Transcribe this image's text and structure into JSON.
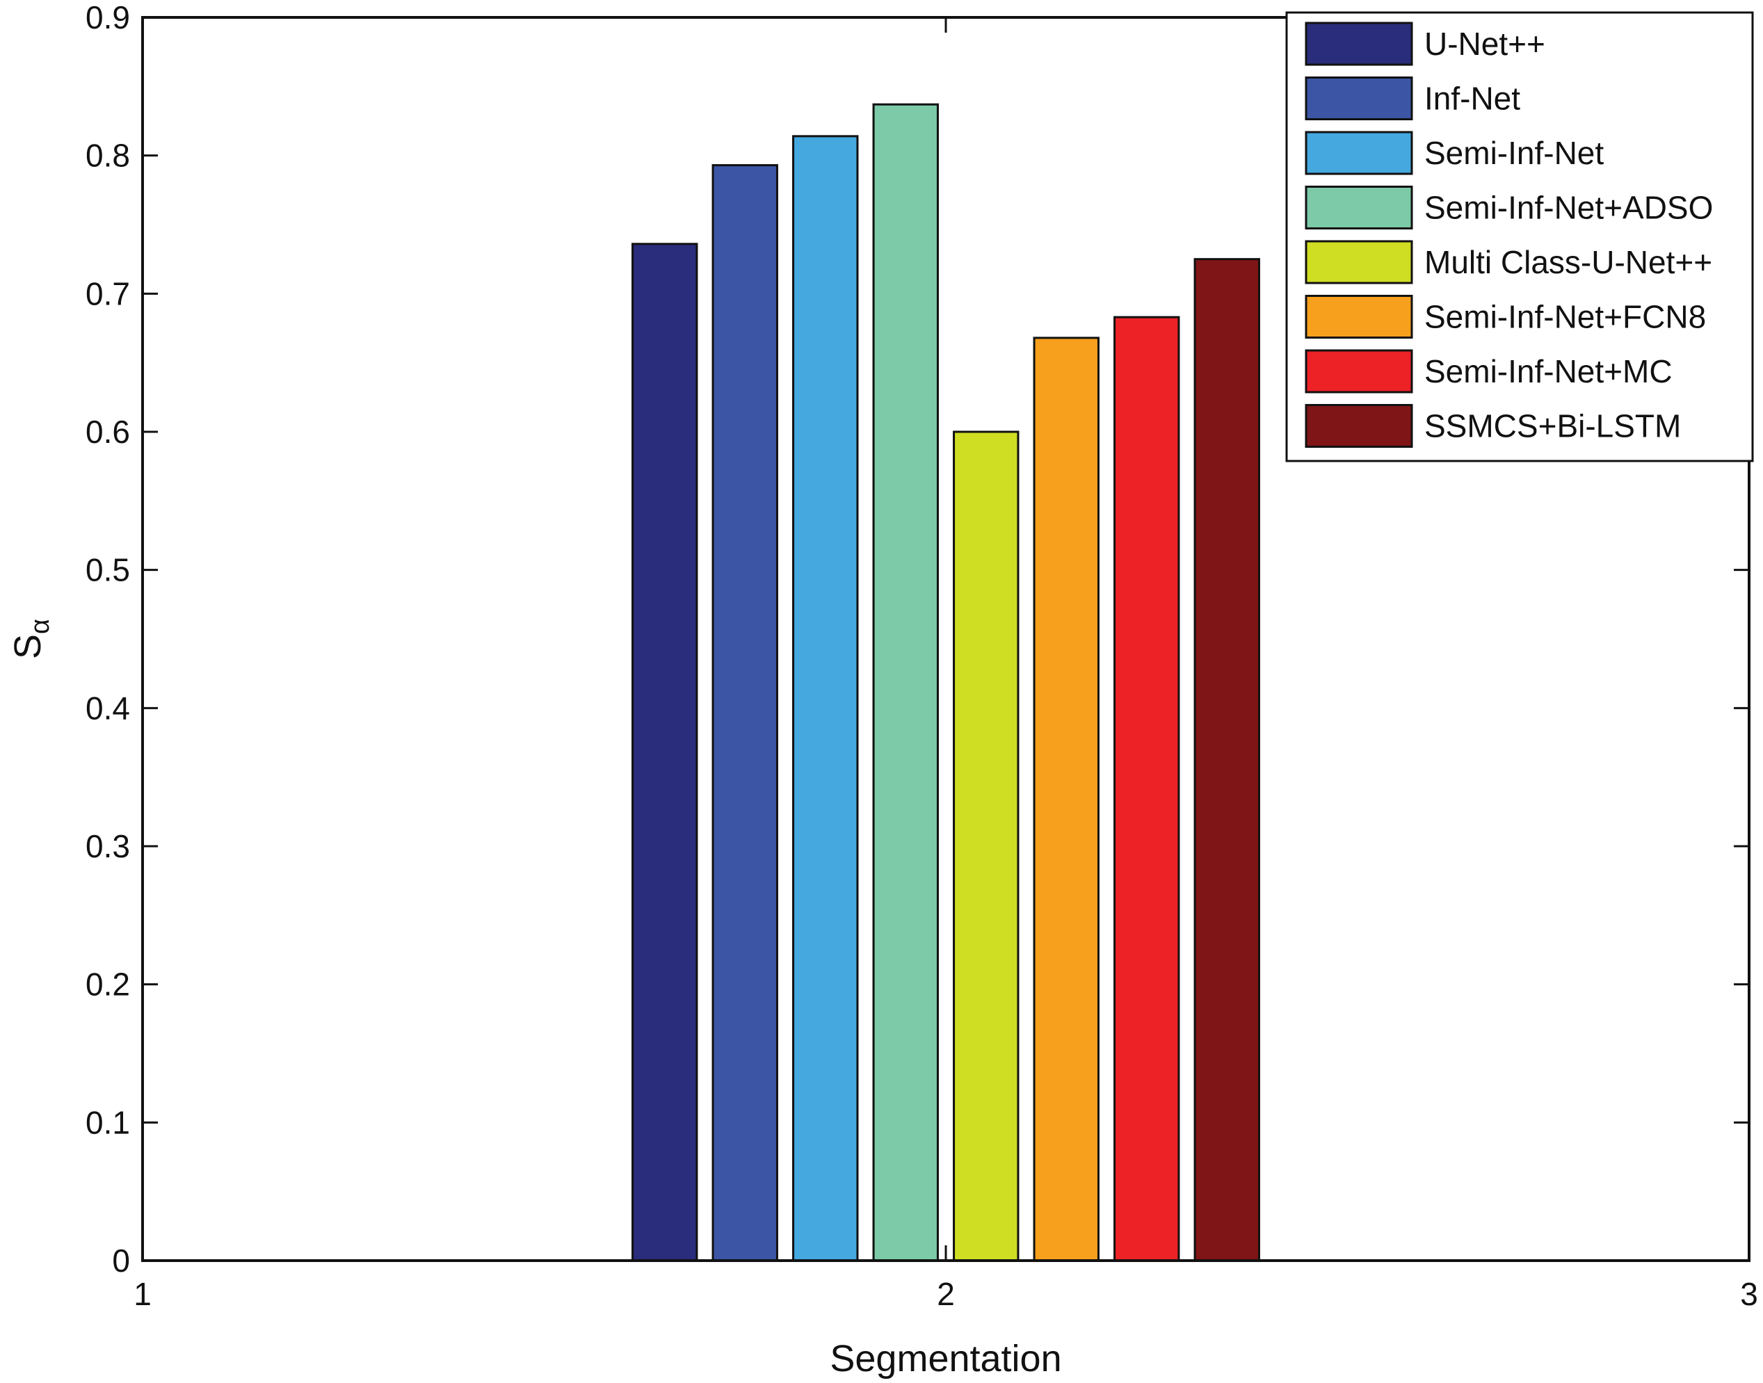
{
  "chart_data": {
    "type": "bar",
    "x": [
      2
    ],
    "xlim": [
      1,
      3
    ],
    "xticks": [
      "1",
      "2",
      "3"
    ],
    "ylim": [
      0,
      0.9
    ],
    "yticks": [
      "0",
      "0.1",
      "0.2",
      "0.3",
      "0.4",
      "0.5",
      "0.6",
      "0.7",
      "0.8",
      "0.9"
    ],
    "xlabel": "Segmentation",
    "ylabel": "S",
    "ylabel_subscript": "α",
    "grid": false,
    "legend_position": "top-right",
    "series": [
      {
        "name": "U-Net++",
        "values": [
          0.736
        ],
        "color": "#2a2d7c"
      },
      {
        "name": "Inf-Net",
        "values": [
          0.793
        ],
        "color": "#3c56a5"
      },
      {
        "name": "Semi-Inf-Net",
        "values": [
          0.814
        ],
        "color": "#45a8df"
      },
      {
        "name": "Semi-Inf-Net+ADSO",
        "values": [
          0.837
        ],
        "color": "#7ccaa8"
      },
      {
        "name": "Multi Class-U-Net++",
        "values": [
          0.6
        ],
        "color": "#cfdd23"
      },
      {
        "name": "Semi-Inf-Net+FCN8",
        "values": [
          0.668
        ],
        "color": "#f7a01e"
      },
      {
        "name": "Semi-Inf-Net+MC",
        "values": [
          0.683
        ],
        "color": "#ec2227"
      },
      {
        "name": "SSMCS+Bi-LSTM",
        "values": [
          0.725
        ],
        "color": "#7f1517"
      }
    ]
  }
}
